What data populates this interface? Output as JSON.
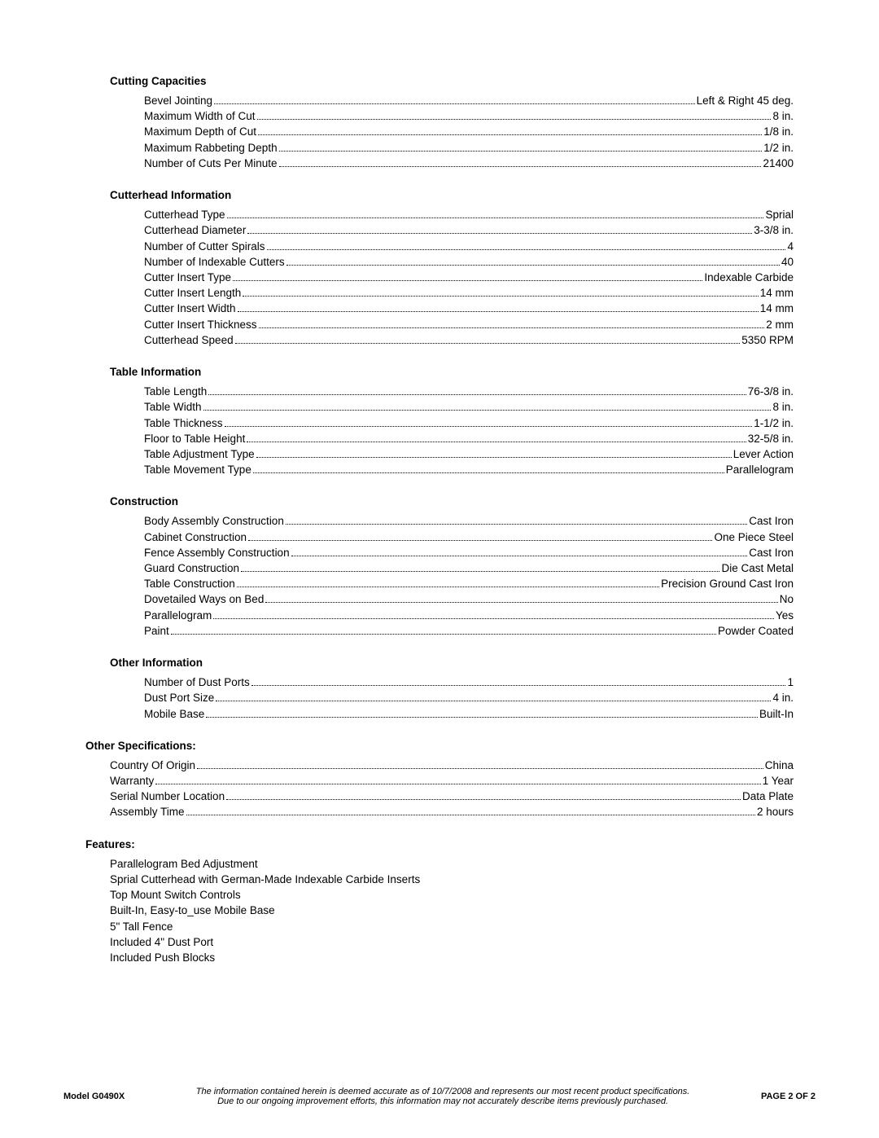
{
  "sections": [
    {
      "title": "Cutting Capacities",
      "indent": "inner",
      "rows": [
        {
          "label": "Bevel Jointing",
          "value": "Left & Right 45 deg."
        },
        {
          "label": "Maximum Width of Cut",
          "value": "8 in."
        },
        {
          "label": "Maximum Depth of Cut",
          "value": "1/8 in."
        },
        {
          "label": "Maximum Rabbeting Depth",
          "value": "1/2 in."
        },
        {
          "label": "Number of Cuts Per Minute",
          "value": "21400"
        }
      ]
    },
    {
      "title": "Cutterhead Information",
      "indent": "inner",
      "rows": [
        {
          "label": "Cutterhead Type",
          "value": "Sprial"
        },
        {
          "label": "Cutterhead Diameter",
          "value": "3-3/8 in."
        },
        {
          "label": "Number of Cutter Spirals",
          "value": "4"
        },
        {
          "label": "Number of Indexable Cutters",
          "value": "40"
        },
        {
          "label": "Cutter Insert Type",
          "value": "Indexable Carbide"
        },
        {
          "label": "Cutter Insert Length",
          "value": "14 mm"
        },
        {
          "label": "Cutter Insert Width",
          "value": "14 mm"
        },
        {
          "label": "Cutter Insert Thickness",
          "value": "2 mm"
        },
        {
          "label": "Cutterhead Speed",
          "value": "5350 RPM"
        }
      ]
    },
    {
      "title": "Table Information",
      "indent": "inner",
      "rows": [
        {
          "label": "Table Length",
          "value": "76-3/8 in."
        },
        {
          "label": "Table Width",
          "value": "8 in."
        },
        {
          "label": "Table Thickness",
          "value": "1-1/2 in."
        },
        {
          "label": "Floor to Table Height",
          "value": "32-5/8 in."
        },
        {
          "label": "Table Adjustment Type",
          "value": "Lever Action"
        },
        {
          "label": "Table Movement Type",
          "value": "Parallelogram"
        }
      ]
    },
    {
      "title": "Construction",
      "indent": "inner",
      "rows": [
        {
          "label": "Body Assembly Construction",
          "value": "Cast Iron"
        },
        {
          "label": "Cabinet Construction",
          "value": "One Piece Steel"
        },
        {
          "label": "Fence Assembly Construction",
          "value": "Cast Iron"
        },
        {
          "label": "Guard Construction",
          "value": "Die Cast Metal"
        },
        {
          "label": "Table Construction",
          "value": "Precision Ground Cast Iron"
        },
        {
          "label": "Dovetailed Ways on Bed",
          "value": "No"
        },
        {
          "label": "Parallelogram",
          "value": "Yes"
        },
        {
          "label": "Paint",
          "value": "Powder Coated"
        }
      ]
    },
    {
      "title": "Other Information",
      "indent": "inner",
      "rows": [
        {
          "label": "Number of Dust Ports",
          "value": "1"
        },
        {
          "label": "Dust Port Size",
          "value": "4 in."
        },
        {
          "label": "Mobile Base",
          "value": "Built-In"
        }
      ]
    },
    {
      "title": "Other Specifications:",
      "indent": "outer",
      "rows": [
        {
          "label": "Country Of Origin ",
          "value": "China"
        },
        {
          "label": "Warranty ",
          "value": "1 Year"
        },
        {
          "label": "Serial Number Location ",
          "value": "Data Plate"
        },
        {
          "label": "Assembly Time ",
          "value": "2 hours"
        }
      ]
    }
  ],
  "features_title": "Features:",
  "features": [
    "Parallelogram Bed Adjustment",
    "Sprial Cutterhead with German-Made Indexable Carbide Inserts",
    "Top Mount Switch Controls",
    "Built-In, Easy-to_use Mobile Base",
    "5\" Tall Fence",
    "Included 4\" Dust Port",
    "Included Push Blocks"
  ],
  "footer": {
    "model": "Model G0490X",
    "disclaimer_line1": "The information contained herein is deemed accurate as of 10/7/2008 and represents our most recent product specifications.",
    "disclaimer_line2": "Due to our ongoing improvement efforts, this information may not accurately describe items previously purchased.",
    "page": "PAGE 2 OF 2"
  }
}
